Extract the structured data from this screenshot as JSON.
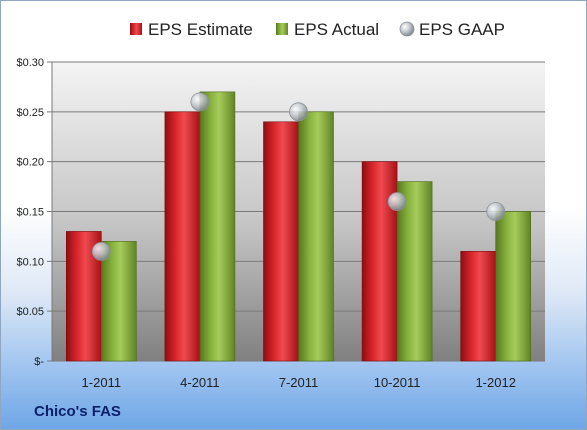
{
  "chart_data": {
    "type": "bar",
    "categories": [
      "1-2011",
      "4-2011",
      "7-2011",
      "10-2011",
      "1-2012"
    ],
    "series": [
      {
        "name": "EPS Estimate",
        "values": [
          0.13,
          0.25,
          0.24,
          0.2,
          0.11
        ],
        "color": "#c8161d",
        "kind": "bar"
      },
      {
        "name": "EPS Actual",
        "values": [
          0.12,
          0.27,
          0.25,
          0.18,
          0.15
        ],
        "color": "#7ea737",
        "kind": "bar"
      },
      {
        "name": "EPS GAAP",
        "values": [
          0.11,
          0.26,
          0.25,
          0.16,
          0.15
        ],
        "color": "#aeb6bf",
        "kind": "marker"
      }
    ],
    "yticks": [
      {
        "value": 0.3,
        "label": "$0.30"
      },
      {
        "value": 0.25,
        "label": "$0.25"
      },
      {
        "value": 0.2,
        "label": "$0.20"
      },
      {
        "value": 0.15,
        "label": "$0.15"
      },
      {
        "value": 0.1,
        "label": "$0.10"
      },
      {
        "value": 0.05,
        "label": "$0.05"
      },
      {
        "value": 0.0,
        "label": "$-"
      }
    ],
    "ylim": [
      0,
      0.3
    ],
    "grid": true,
    "legend_position": "top",
    "title": "",
    "xlabel": "",
    "ylabel": ""
  },
  "footer": {
    "title": "Chico's FAS"
  }
}
